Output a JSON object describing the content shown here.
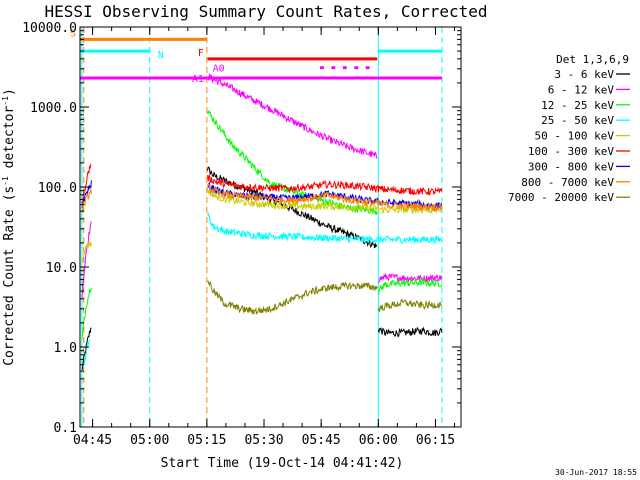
{
  "chart_data": {
    "type": "line",
    "title": "HESSI Observing Summary Count Rates, Corrected",
    "xlabel": "Start Time (19-Oct-14 04:41:42)",
    "ylabel": "Corrected Count Rate (s",
    "ylabel_sup": "-1",
    "ylabel_tail": " detector",
    "ylabel_sup2": "-1",
    "ylabel_end": ")",
    "yscale": "log",
    "ylim": [
      0.1,
      10000
    ],
    "xlim_minutes": [
      0,
      100
    ],
    "x_ticks": [
      {
        "label": "04:45",
        "minute": 3.3
      },
      {
        "label": "05:00",
        "minute": 18.3
      },
      {
        "label": "05:15",
        "minute": 33.3
      },
      {
        "label": "05:30",
        "minute": 48.3
      },
      {
        "label": "05:45",
        "minute": 63.3
      },
      {
        "label": "06:00",
        "minute": 78.3
      },
      {
        "label": "06:15",
        "minute": 93.3
      }
    ],
    "y_ticks": [
      {
        "label": "0.1",
        "value": 0.1
      },
      {
        "label": "1.0",
        "value": 1
      },
      {
        "label": "10.0",
        "value": 10
      },
      {
        "label": "100.0",
        "value": 100
      },
      {
        "label": "1000.0",
        "value": 1000
      },
      {
        "label": "10000.0",
        "value": 10000
      }
    ],
    "legend_title": "Det 1,3,6,9",
    "legend_position": "right",
    "series": [
      {
        "name": "3 - 6 keV",
        "color": "#000000",
        "segments": [
          [
            [
              0.5,
              0.5
            ],
            [
              1,
              0.7
            ],
            [
              1.5,
              0.9
            ],
            [
              2,
              1.2
            ],
            [
              2.5,
              1.5
            ],
            [
              3,
              1.8
            ]
          ],
          [
            [
              33.5,
              170
            ],
            [
              35,
              140
            ],
            [
              38,
              120
            ],
            [
              42,
              100
            ],
            [
              46,
              85
            ],
            [
              50,
              70
            ],
            [
              55,
              55
            ],
            [
              60,
              42
            ],
            [
              65,
              32
            ],
            [
              70,
              26
            ],
            [
              75,
              21
            ],
            [
              77,
              19
            ],
            [
              78,
              18
            ]
          ],
          [
            [
              78.3,
              1.7
            ],
            [
              80,
              1.5
            ],
            [
              85,
              1.5
            ],
            [
              90,
              1.6
            ],
            [
              93,
              1.5
            ],
            [
              95,
              1.6
            ]
          ]
        ]
      },
      {
        "name": "6 - 12 keV",
        "color": "#ff00ff",
        "segments": [
          [
            [
              0.5,
              4
            ],
            [
              1,
              8
            ],
            [
              1.5,
              14
            ],
            [
              2,
              20
            ],
            [
              2.5,
              28
            ],
            [
              3,
              35
            ]
          ],
          [
            [
              33.5,
              2400
            ],
            [
              36,
              2100
            ],
            [
              40,
              1700
            ],
            [
              45,
              1250
            ],
            [
              50,
              950
            ],
            [
              55,
              700
            ],
            [
              60,
              520
            ],
            [
              65,
              400
            ],
            [
              70,
              320
            ],
            [
              75,
              270
            ],
            [
              77,
              250
            ],
            [
              78,
              240
            ]
          ],
          [
            [
              78.3,
              7
            ],
            [
              80,
              7.5
            ],
            [
              85,
              7.3
            ],
            [
              90,
              7.2
            ],
            [
              95,
              7.4
            ]
          ]
        ]
      },
      {
        "name": "12 - 25 keV",
        "color": "#00ff00",
        "segments": [
          [
            [
              0.5,
              1.2
            ],
            [
              1,
              2
            ],
            [
              1.5,
              3
            ],
            [
              2,
              4
            ],
            [
              2.5,
              5
            ],
            [
              3,
              6
            ]
          ],
          [
            [
              33.5,
              900
            ],
            [
              35,
              700
            ],
            [
              38,
              450
            ],
            [
              40,
              330
            ],
            [
              43,
              240
            ],
            [
              46,
              170
            ],
            [
              50,
              110
            ],
            [
              55,
              90
            ],
            [
              60,
              75
            ],
            [
              65,
              65
            ],
            [
              70,
              55
            ],
            [
              75,
              52
            ],
            [
              78,
              50
            ]
          ],
          [
            [
              78.3,
              5
            ],
            [
              80,
              6
            ],
            [
              85,
              6.3
            ],
            [
              90,
              6.4
            ],
            [
              95,
              6.2
            ]
          ]
        ]
      },
      {
        "name": "25 - 50 keV",
        "color": "#00ffff",
        "segments": [
          [
            [
              1,
              0.6
            ],
            [
              1.5,
              0.8
            ],
            [
              2,
              1
            ],
            [
              2.5,
              1.3
            ]
          ],
          [
            [
              33.5,
              45
            ],
            [
              35,
              32
            ],
            [
              38,
              28
            ],
            [
              45,
              25
            ],
            [
              55,
              24
            ],
            [
              65,
              23
            ],
            [
              75,
              22
            ],
            [
              80,
              22
            ],
            [
              85,
              22
            ],
            [
              90,
              22
            ],
            [
              95,
              22
            ]
          ]
        ]
      },
      {
        "name": "50 - 100 keV",
        "color": "#cccc00",
        "segments": [
          [
            [
              0.5,
              12
            ],
            [
              1,
              15
            ],
            [
              1.5,
              17
            ],
            [
              2,
              19
            ],
            [
              3,
              20
            ]
          ],
          [
            [
              33.5,
              90
            ],
            [
              36,
              75
            ],
            [
              40,
              68
            ],
            [
              45,
              63
            ],
            [
              50,
              60
            ],
            [
              55,
              58
            ],
            [
              60,
              57
            ],
            [
              65,
              58
            ],
            [
              70,
              56
            ],
            [
              75,
              55
            ],
            [
              80,
              52
            ],
            [
              85,
              52
            ],
            [
              90,
              52
            ],
            [
              95,
              52
            ]
          ]
        ]
      },
      {
        "name": "100 - 300 keV",
        "color": "#ff0000",
        "segments": [
          [
            [
              0.5,
              60
            ],
            [
              1,
              80
            ],
            [
              1.5,
              110
            ],
            [
              2,
              140
            ],
            [
              2.5,
              170
            ],
            [
              3,
              200
            ]
          ],
          [
            [
              33.5,
              130
            ],
            [
              36,
              115
            ],
            [
              40,
              105
            ],
            [
              45,
              100
            ],
            [
              50,
              97
            ],
            [
              55,
              96
            ],
            [
              60,
              100
            ],
            [
              65,
              108
            ],
            [
              70,
              105
            ],
            [
              75,
              100
            ],
            [
              80,
              93
            ],
            [
              85,
              90
            ],
            [
              90,
              88
            ],
            [
              95,
              87
            ]
          ]
        ]
      },
      {
        "name": "300 - 800 keV",
        "color": "#0000ff",
        "segments": [
          [
            [
              0.5,
              55
            ],
            [
              1,
              70
            ],
            [
              2,
              90
            ],
            [
              3,
              110
            ]
          ],
          [
            [
              33.5,
              105
            ],
            [
              36,
              90
            ],
            [
              40,
              80
            ],
            [
              45,
              76
            ],
            [
              50,
              74
            ],
            [
              55,
              72
            ],
            [
              60,
              76
            ],
            [
              65,
              82
            ],
            [
              70,
              75
            ],
            [
              75,
              68
            ],
            [
              80,
              64
            ],
            [
              85,
              62
            ],
            [
              90,
              60
            ],
            [
              95,
              58
            ]
          ]
        ]
      },
      {
        "name": "800 - 7000 keV",
        "color": "#ff8000",
        "segments": [
          [
            [
              0.5,
              50
            ],
            [
              1,
              60
            ],
            [
              2,
              75
            ],
            [
              3,
              90
            ]
          ],
          [
            [
              33.5,
              100
            ],
            [
              36,
              85
            ],
            [
              40,
              78
            ],
            [
              45,
              74
            ],
            [
              50,
              72
            ],
            [
              55,
              68
            ],
            [
              60,
              72
            ],
            [
              65,
              78
            ],
            [
              70,
              70
            ],
            [
              75,
              65
            ],
            [
              80,
              60
            ],
            [
              85,
              58
            ],
            [
              90,
              57
            ],
            [
              95,
              56
            ]
          ]
        ]
      },
      {
        "name": "7000 - 20000 keV",
        "color": "#808000",
        "segments": [
          [
            [
              33.5,
              7
            ],
            [
              35,
              5
            ],
            [
              38,
              3.5
            ],
            [
              42,
              3
            ],
            [
              46,
              2.8
            ],
            [
              50,
              3
            ],
            [
              55,
              3.8
            ],
            [
              60,
              4.8
            ],
            [
              65,
              5.5
            ],
            [
              70,
              5.8
            ],
            [
              75,
              5.8
            ],
            [
              78,
              5.5
            ]
          ],
          [
            [
              78.3,
              3
            ],
            [
              80,
              3.2
            ],
            [
              85,
              3.6
            ],
            [
              90,
              3.3
            ],
            [
              95,
              3.4
            ]
          ]
        ]
      }
    ],
    "flags": [
      {
        "label": "S",
        "color": "#ff8000",
        "y": 7000,
        "segments": [
          [
            0,
            33.3
          ]
        ]
      },
      {
        "label": "N",
        "color": "#00ffff",
        "y": 5000,
        "segments": [
          [
            0,
            18.3
          ],
          [
            78.3,
            95
          ]
        ]
      },
      {
        "label": "F",
        "color": "#ff0000",
        "y": 4000,
        "segments": [
          [
            33.5,
            78
          ]
        ]
      },
      {
        "label": "A0",
        "color": "#ff00ff",
        "y": 3100,
        "segments": [
          [
            63,
            64
          ],
          [
            66,
            67
          ],
          [
            69,
            70
          ],
          [
            72,
            73
          ],
          [
            75,
            76
          ]
        ]
      },
      {
        "label": "A1",
        "color": "#ff00ff",
        "y": 2300,
        "segments": [
          [
            0,
            95
          ]
        ]
      }
    ],
    "vlines": [
      {
        "minute": 0.5,
        "color": "#00ffff",
        "style": "solid"
      },
      {
        "minute": 1.0,
        "color": "#ff8000",
        "style": "dashed"
      },
      {
        "minute": 18.3,
        "color": "#00ffff",
        "style": "dashed"
      },
      {
        "minute": 33.3,
        "color": "#ff8000",
        "style": "dashed"
      },
      {
        "minute": 78.3,
        "color": "#00ffff",
        "style": "solid"
      },
      {
        "minute": 95.0,
        "color": "#00ffff",
        "style": "dashed"
      }
    ]
  },
  "footer": {
    "timestamp": "30-Jun-2017 18:55"
  }
}
